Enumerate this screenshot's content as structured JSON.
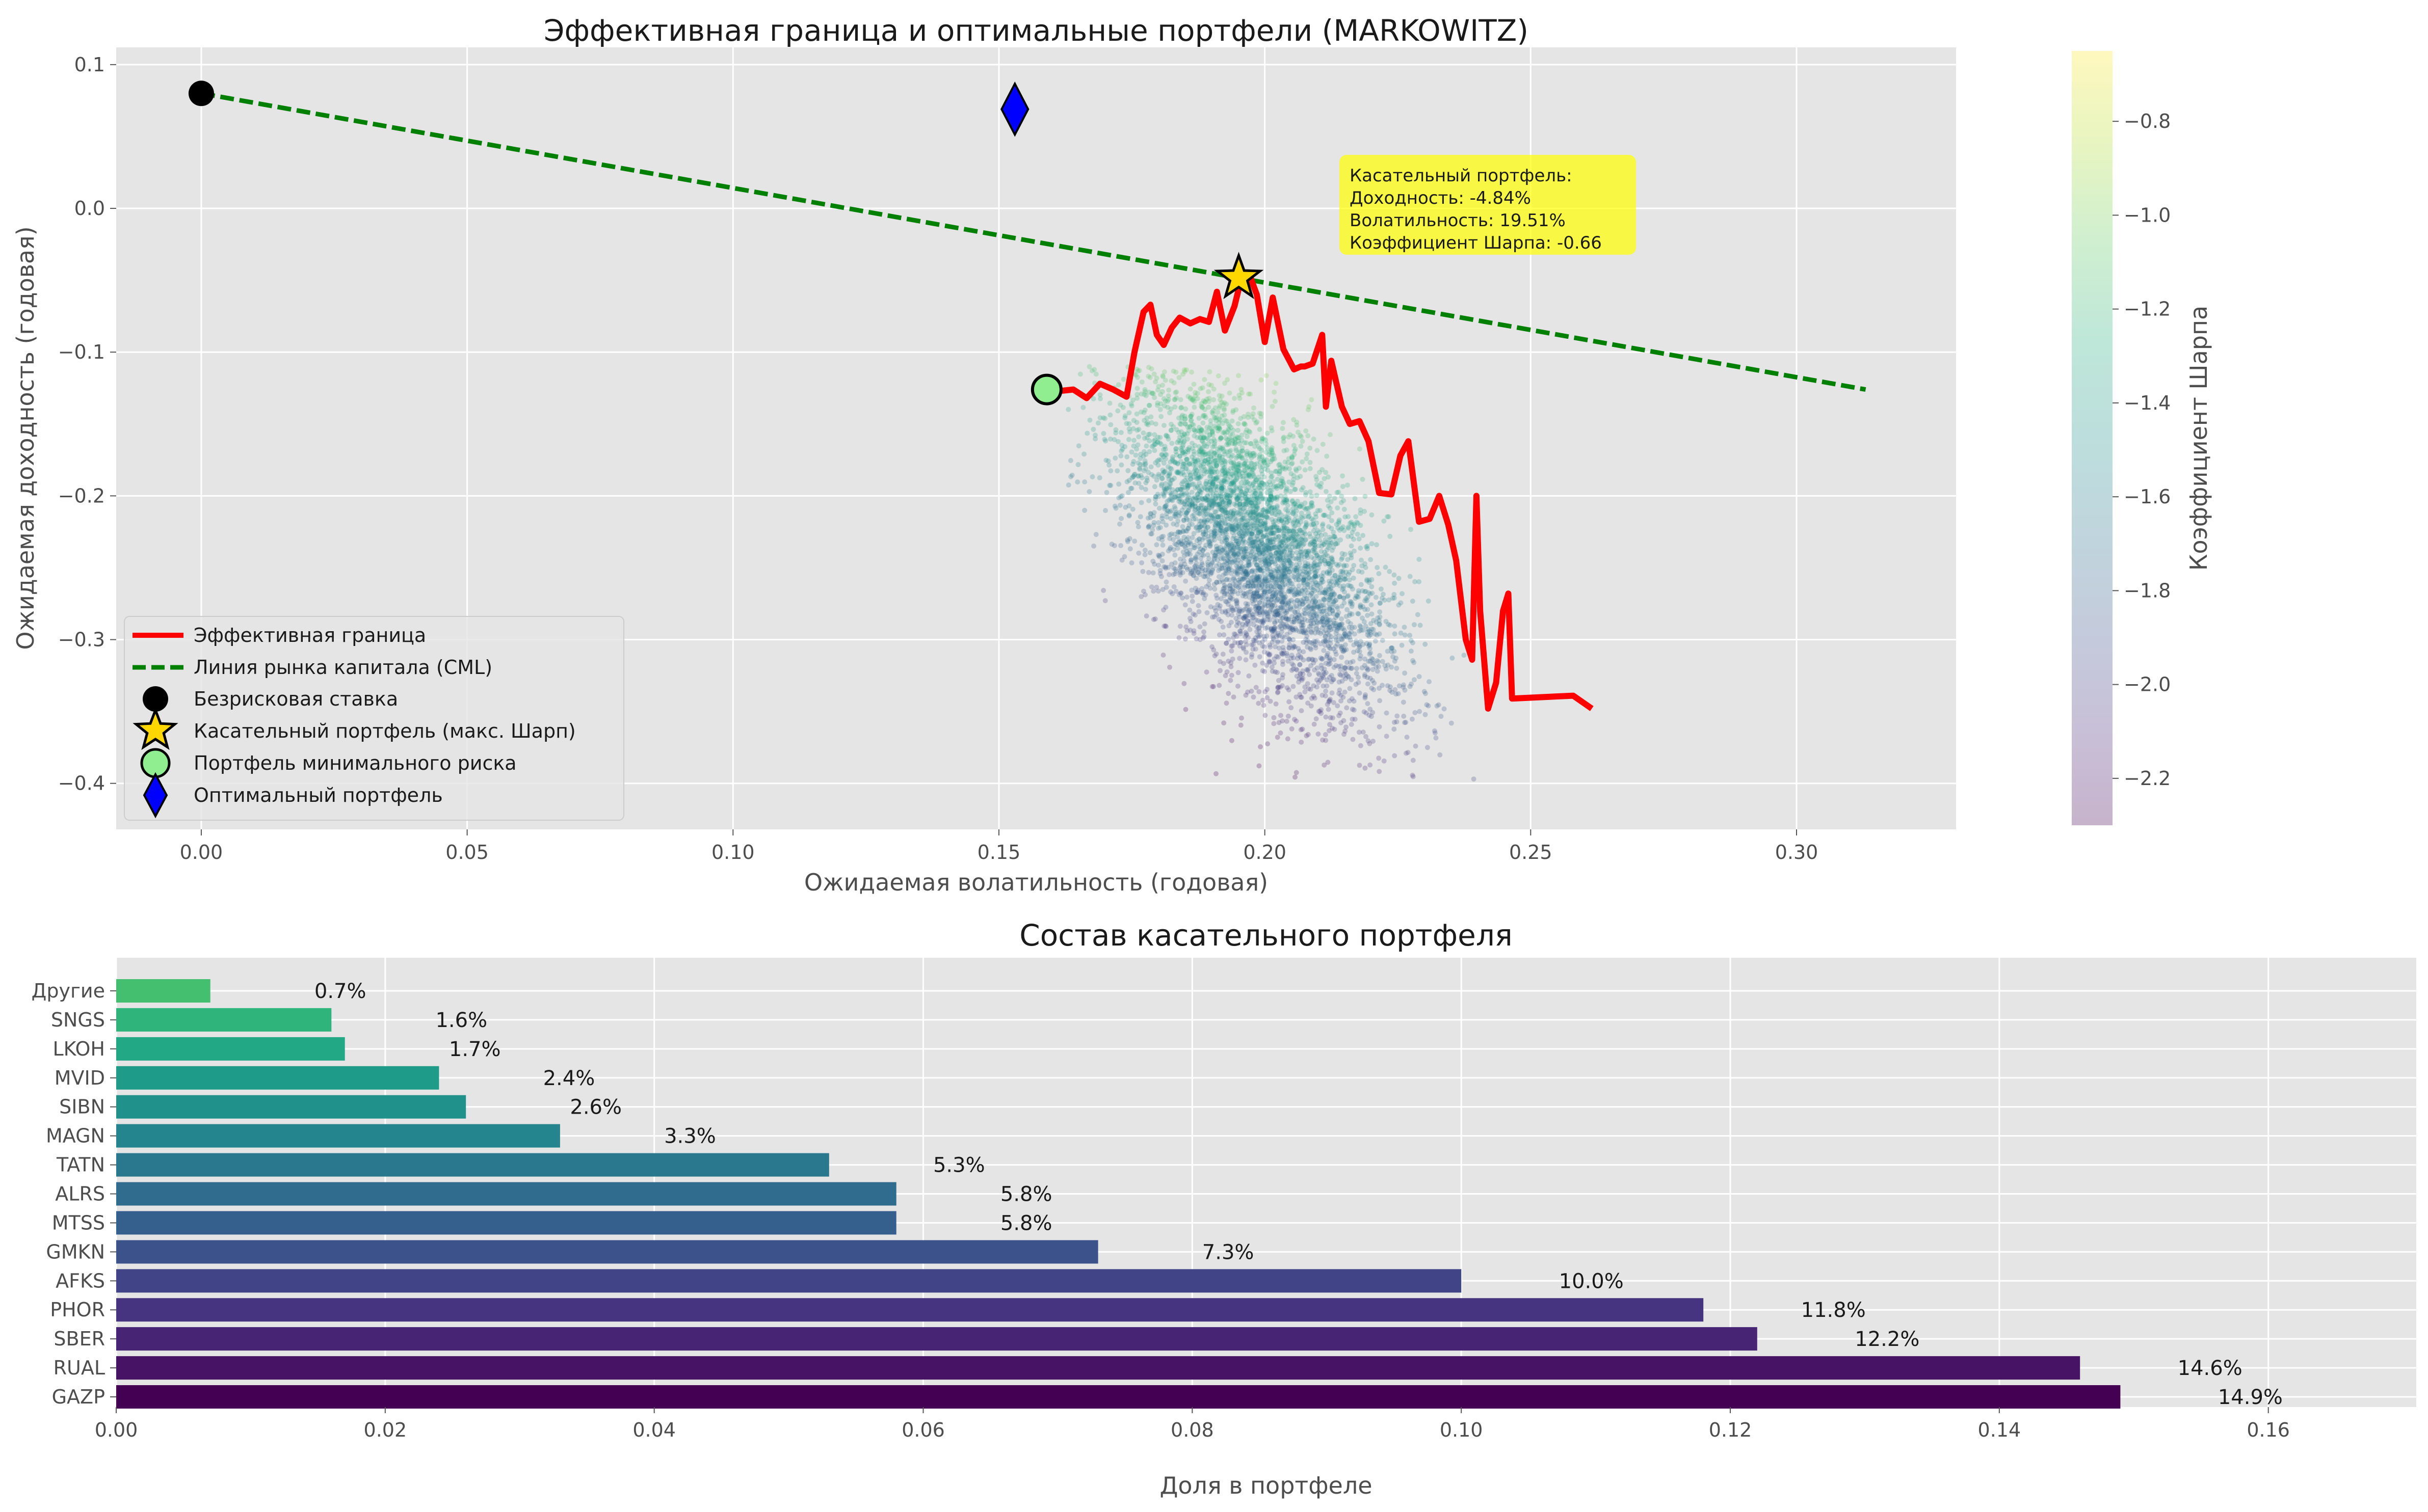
{
  "chart_data": [
    {
      "type": "scatter",
      "title": "Эффективная граница и оптимальные портфели (MARKOWITZ)",
      "xlabel": "Ожидаемая волатильность (годовая)",
      "ylabel": "Ожидаемая доходность (годовая)",
      "xlim": [
        -0.016,
        0.33
      ],
      "ylim": [
        -0.432,
        0.112
      ],
      "x_ticks": [
        0.0,
        0.05,
        0.1,
        0.15,
        0.2,
        0.25,
        0.3
      ],
      "x_tick_labels": [
        "0.00",
        "0.05",
        "0.10",
        "0.15",
        "0.20",
        "0.25",
        "0.30"
      ],
      "y_ticks": [
        0.1,
        0.0,
        -0.1,
        -0.2,
        -0.3,
        -0.4
      ],
      "y_tick_labels": [
        "0.1",
        "0.0",
        "−0.1",
        "−0.2",
        "−0.3",
        "−0.4"
      ],
      "grid": true,
      "legend_placement": "lower-left",
      "colorbar": {
        "label": "Коэффициент Шарпа",
        "range": [
          -2.3,
          -0.65
        ],
        "ticks": [
          -0.8,
          -1.0,
          -1.2,
          -1.4,
          -1.6,
          -1.8,
          -2.0,
          -2.2
        ],
        "tick_labels": [
          "−0.8",
          "−1.0",
          "−1.2",
          "−1.4",
          "−1.6",
          "−1.8",
          "−2.0",
          "−2.2"
        ],
        "colormap": "viridis"
      },
      "random_portfolios": {
        "count": 4500,
        "volatility_range": [
          0.163,
          0.242
        ],
        "return_range": [
          -0.41,
          -0.11
        ]
      },
      "series": [
        {
          "name": "Эффективная граница",
          "kind": "line",
          "color": "#ff0000",
          "x": [
            0.159,
            0.1615,
            0.164,
            0.1665,
            0.169,
            0.1715,
            0.174,
            0.1755,
            0.1772,
            0.1785,
            0.1797,
            0.181,
            0.1825,
            0.184,
            0.186,
            0.1878,
            0.1895,
            0.191,
            0.1925,
            0.1943,
            0.1955,
            0.197,
            0.1985,
            0.2,
            0.2015,
            0.2035,
            0.2055,
            0.2068,
            0.2075,
            0.209,
            0.2108,
            0.2115,
            0.2125,
            0.2145,
            0.216,
            0.2178,
            0.2195,
            0.2215,
            0.2238,
            0.2255,
            0.227,
            0.229,
            0.231,
            0.2328,
            0.2345,
            0.236,
            0.2378,
            0.239,
            0.2398,
            0.2405,
            0.242,
            0.2435,
            0.2448,
            0.2458,
            0.2465,
            0.258,
            0.2615
          ],
          "y": [
            -0.126,
            -0.127,
            -0.126,
            -0.132,
            -0.122,
            -0.126,
            -0.131,
            -0.1,
            -0.072,
            -0.067,
            -0.088,
            -0.095,
            -0.083,
            -0.076,
            -0.08,
            -0.077,
            -0.079,
            -0.058,
            -0.085,
            -0.068,
            -0.05,
            -0.045,
            -0.06,
            -0.093,
            -0.062,
            -0.098,
            -0.112,
            -0.11,
            -0.11,
            -0.108,
            -0.088,
            -0.138,
            -0.106,
            -0.138,
            -0.15,
            -0.148,
            -0.162,
            -0.198,
            -0.199,
            -0.172,
            -0.162,
            -0.218,
            -0.216,
            -0.2,
            -0.22,
            -0.245,
            -0.3,
            -0.314,
            -0.2,
            -0.28,
            -0.348,
            -0.33,
            -0.28,
            -0.268,
            -0.341,
            -0.339,
            -0.348
          ]
        },
        {
          "name": "Линия рынка капитала (CML)",
          "kind": "dashed-line",
          "color": "#008000",
          "x": [
            0.0,
            0.313
          ],
          "y": [
            0.08,
            -0.126
          ]
        },
        {
          "name": "Безрисковая ставка",
          "kind": "marker-circle",
          "color": "#000000",
          "x": [
            0.0
          ],
          "y": [
            0.08
          ]
        },
        {
          "name": "Касательный портфель (макс. Шарп)",
          "kind": "marker-star",
          "color": "#ffd700",
          "x": [
            0.1951
          ],
          "y": [
            -0.0484
          ]
        },
        {
          "name": "Портфель минимального риска",
          "kind": "marker-circle",
          "color": "#90ee90",
          "x": [
            0.159
          ],
          "y": [
            -0.126
          ]
        },
        {
          "name": "Оптимальный портфель",
          "kind": "marker-diamond",
          "color": "#0000ff",
          "x": [
            0.153
          ],
          "y": [
            0.069
          ]
        }
      ],
      "annotation": {
        "anchor": [
          0.215,
          -0.034
        ],
        "lines": [
          "Касательный портфель:",
          "Доходность: -4.84%",
          "Волатильность: 19.51%",
          "Коэффициент Шарпа: -0.66"
        ]
      }
    },
    {
      "type": "bar",
      "orientation": "horizontal",
      "title": "Состав касательного портфеля",
      "xlabel": "Доля в портфеле",
      "ylabel": "",
      "xlim": [
        0,
        0.171
      ],
      "x_ticks": [
        0.0,
        0.02,
        0.04,
        0.06,
        0.08,
        0.1,
        0.12,
        0.14,
        0.16
      ],
      "x_tick_labels": [
        "0.00",
        "0.02",
        "0.04",
        "0.06",
        "0.08",
        "0.10",
        "0.12",
        "0.14",
        "0.16"
      ],
      "grid": true,
      "categories": [
        "GAZP",
        "RUAL",
        "SBER",
        "PHOR",
        "AFKS",
        "GMKN",
        "MTSS",
        "ALRS",
        "TATN",
        "MAGN",
        "SIBN",
        "MVID",
        "LKOH",
        "SNGS",
        "Другие"
      ],
      "values": [
        0.149,
        0.146,
        0.122,
        0.118,
        0.1,
        0.073,
        0.058,
        0.058,
        0.053,
        0.033,
        0.026,
        0.024,
        0.017,
        0.016,
        0.007
      ],
      "value_labels": [
        "14.9%",
        "14.6%",
        "12.2%",
        "11.8%",
        "10.0%",
        "7.3%",
        "5.8%",
        "5.8%",
        "5.3%",
        "3.3%",
        "2.6%",
        "2.4%",
        "1.7%",
        "1.6%",
        "0.7%"
      ],
      "colors": [
        "#440154",
        "#471365",
        "#482475",
        "#463480",
        "#414487",
        "#3b528b",
        "#355f8d",
        "#2f6c8e",
        "#2a788e",
        "#25858e",
        "#21918c",
        "#1e9c89",
        "#22a884",
        "#2fb47c",
        "#44bf70"
      ]
    }
  ]
}
